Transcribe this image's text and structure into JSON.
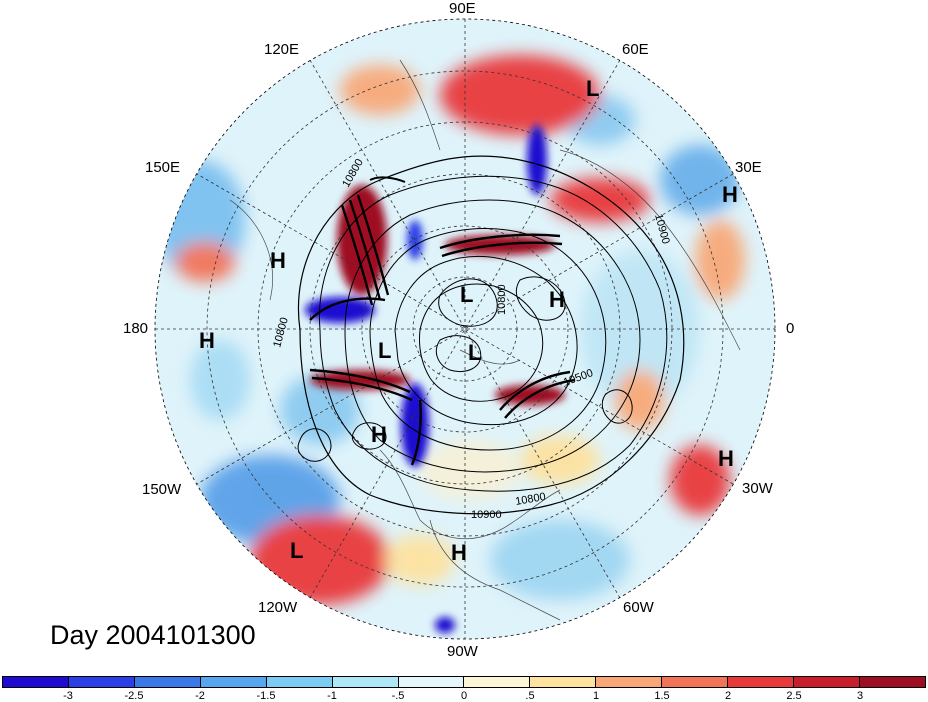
{
  "title": "Day 2004101300",
  "longitude_labels": {
    "90E": "90E",
    "60E": "60E",
    "30E": "30E",
    "0": "0",
    "30W": "30W",
    "60W": "60W",
    "90W": "90W",
    "120W": "120W",
    "150W": "150W",
    "180": "180",
    "150E": "150E",
    "120E": "120E"
  },
  "pressure_centers": [
    {
      "id": "l-60e",
      "symbol": "L"
    },
    {
      "id": "h-30e",
      "symbol": "H"
    },
    {
      "id": "h-150e",
      "symbol": "H"
    },
    {
      "id": "l-pole-upper",
      "symbol": "L"
    },
    {
      "id": "h-pole-east",
      "symbol": "H"
    },
    {
      "id": "h-180",
      "symbol": "H"
    },
    {
      "id": "l-pole-left",
      "symbol": "L"
    },
    {
      "id": "l-pole-center",
      "symbol": "L"
    },
    {
      "id": "h-pacific",
      "symbol": "H"
    },
    {
      "id": "h-30w",
      "symbol": "H"
    },
    {
      "id": "l-120w",
      "symbol": "L"
    },
    {
      "id": "h-90w",
      "symbol": "H"
    }
  ],
  "contour_labels": [
    "10800",
    "10900",
    "10500",
    "10800",
    "10900",
    "10800",
    "10800"
  ],
  "colorbar": {
    "colors": [
      "#1e0ad0",
      "#2b3fe6",
      "#3a78e8",
      "#55a6ee",
      "#7ccbf2",
      "#aee8f7",
      "#e6f7fb",
      "#fdf5d5",
      "#fde2a0",
      "#f8a878",
      "#f17358",
      "#e8393a",
      "#c81e2c",
      "#9e0e20"
    ],
    "ticks": [
      "-3",
      "-2.5",
      "-2",
      "-1.5",
      "-1",
      "-.5",
      "0",
      ".5",
      "1",
      "1.5",
      "2",
      "2.5",
      "3"
    ]
  }
}
